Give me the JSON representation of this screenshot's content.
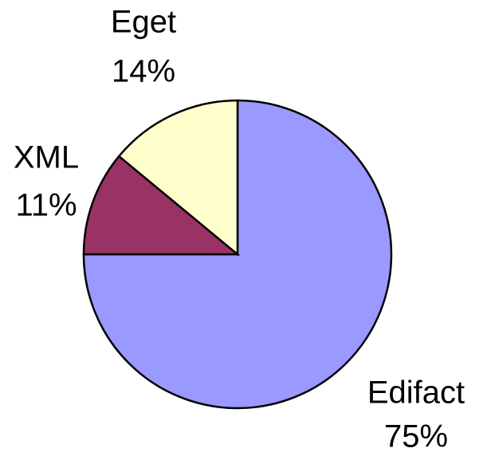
{
  "chart_data": {
    "type": "pie",
    "categories": [
      "Edifact",
      "XML",
      "Eget"
    ],
    "values": [
      75,
      11,
      14
    ],
    "value_labels": [
      "75%",
      "11%",
      "14%"
    ],
    "colors": [
      "#9999ff",
      "#993366",
      "#ffffcc"
    ]
  }
}
